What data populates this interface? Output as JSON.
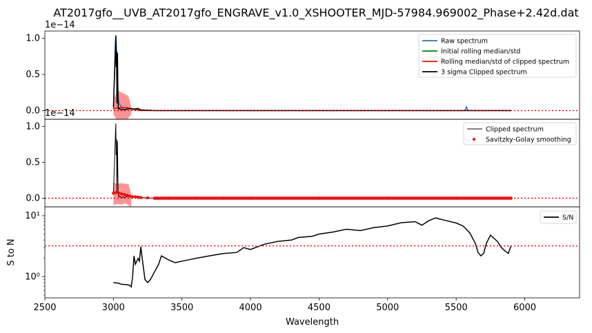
{
  "title": "AT2017gfo__UVB_AT2017gfo_ENGRAVE_v1.0_XSHOOTER_MJD-57984.969002_Phase+2.42d.dat",
  "colors": {
    "raw": "#1f77b4",
    "initial": "#008000",
    "rolling": "#ff0000",
    "band": "#ff8080",
    "clipped": "#000000"
  },
  "chart_data": [
    {
      "type": "line",
      "panel": "top",
      "xlim": [
        2500,
        6400
      ],
      "ylim": [
        -0.12,
        1.1
      ],
      "offset_text": "1e−14",
      "yticks": [
        0.0,
        0.5,
        1.0
      ],
      "ytick_labels": [
        "0.0",
        "0.5",
        "1.0"
      ],
      "grid": false,
      "legend_position": "top-right",
      "hline": {
        "y": 0.0,
        "style": "dotted",
        "color": "#ff0000"
      },
      "series": [
        {
          "name": "Raw spectrum",
          "color": "#1f77b4",
          "x": [
            3000,
            3010,
            3015,
            3020,
            3025,
            3030,
            3040,
            3060,
            3100,
            3150,
            3200,
            3300,
            4000,
            5000,
            5560,
            5570,
            5575,
            5580,
            5590,
            5900
          ],
          "y": [
            0.02,
            0.6,
            0.95,
            1.0,
            0.75,
            0.3,
            0.1,
            0.05,
            0.03,
            0.02,
            0.01,
            0.0,
            0.0,
            0.0,
            0.0,
            0.02,
            0.06,
            0.02,
            0.0,
            0.0
          ]
        },
        {
          "name": "Initial rolling median/std",
          "color": "#008000",
          "x": [],
          "y": []
        },
        {
          "name": "Rolling median/std of clipped spectrum",
          "color": "#ff0000",
          "x": [
            3000,
            3050,
            3100,
            3130,
            3200,
            5900
          ],
          "y": [
            0.03,
            0.04,
            0.04,
            0.02,
            0.0,
            0.0
          ],
          "band_x": [
            3000,
            3030,
            3060,
            3090,
            3110,
            3130
          ],
          "band_low": [
            -0.05,
            -0.15,
            -0.2,
            -0.18,
            -0.1,
            -0.05
          ],
          "band_high": [
            0.15,
            0.28,
            0.25,
            0.22,
            0.2,
            0.05
          ]
        },
        {
          "name": "3 sigma Clipped spectrum",
          "color": "#000000",
          "x": [
            3000,
            3005,
            3010,
            3015,
            3018,
            3020,
            3023,
            3026,
            3030,
            3032,
            3035,
            3040,
            3045,
            3050,
            3060,
            3070,
            3080,
            3100,
            3120,
            3150,
            3180,
            3200,
            3300,
            4000,
            5000,
            5900
          ],
          "y": [
            0.05,
            0.35,
            0.6,
            0.9,
            1.04,
            0.6,
            0.82,
            0.1,
            0.8,
            0.4,
            0.05,
            0.02,
            0.03,
            0.02,
            0.01,
            0.02,
            0.01,
            0.02,
            0.03,
            0.02,
            0.03,
            0.01,
            0.0,
            0.0,
            0.0,
            0.0
          ]
        }
      ]
    },
    {
      "type": "line",
      "panel": "middle",
      "xlim": [
        2500,
        6400
      ],
      "ylim": [
        -0.12,
        1.1
      ],
      "offset_text": "1e−14",
      "yticks": [
        0.0,
        0.5,
        1.0
      ],
      "ytick_labels": [
        "0.0",
        "0.5",
        "1.0"
      ],
      "grid": false,
      "legend_position": "top-right",
      "hline": {
        "y": 0.0,
        "style": "dotted",
        "color": "#ff0000"
      },
      "series": [
        {
          "name": "Clipped spectrum",
          "color": "#000000",
          "x": [
            3000,
            3005,
            3010,
            3015,
            3018,
            3020,
            3023,
            3026,
            3030,
            3032,
            3035,
            3040,
            3045,
            3050,
            3060,
            3070,
            3080,
            3100,
            3120,
            3150,
            3180,
            3200,
            3300,
            4000,
            5000,
            5900
          ],
          "y": [
            0.05,
            0.35,
            0.6,
            0.9,
            1.04,
            0.6,
            0.82,
            0.1,
            0.8,
            0.4,
            0.05,
            0.02,
            0.03,
            0.02,
            0.01,
            0.02,
            0.01,
            0.02,
            0.03,
            0.02,
            0.03,
            0.01,
            0.0,
            0.0,
            0.0,
            0.0
          ]
        },
        {
          "name": "Savitzky-Golay smoothing",
          "color": "#ff0000",
          "x": [
            3000,
            3020,
            3040,
            3060,
            3080,
            3100,
            3120,
            3140,
            3160,
            3180,
            3200,
            3250,
            3300,
            3400,
            3600,
            3800,
            4000,
            4500,
            5000,
            5500,
            5900
          ],
          "y": [
            0.07,
            0.08,
            0.07,
            0.06,
            0.05,
            0.04,
            0.03,
            0.02,
            0.02,
            0.01,
            0.01,
            0.005,
            0.0,
            0.0,
            0.0,
            0.0,
            0.0,
            0.0,
            0.0,
            0.0,
            0.0
          ],
          "band_x": [
            3000,
            3030,
            3060,
            3090,
            3110,
            3130
          ],
          "band_low": [
            -0.1,
            -0.08,
            -0.09,
            -0.07,
            -0.1,
            -0.12
          ],
          "band_high": [
            0.22,
            0.2,
            0.21,
            0.2,
            0.2,
            0.05
          ]
        }
      ]
    },
    {
      "type": "line",
      "panel": "bottom",
      "xlim": [
        2500,
        6400
      ],
      "ylog": true,
      "ylim": [
        0.45,
        14
      ],
      "offset_text": "",
      "ylabel": "S to N",
      "xlabel": "Wavelength",
      "yticks": [
        1,
        10
      ],
      "ytick_labels": [
        "10⁰",
        "10¹"
      ],
      "xticks": [
        2500,
        3000,
        3500,
        4000,
        4500,
        5000,
        5500,
        6000
      ],
      "xtick_labels": [
        "2500",
        "3000",
        "3500",
        "4000",
        "4500",
        "5000",
        "5500",
        "6000"
      ],
      "grid": false,
      "legend_position": "top-right",
      "hline": {
        "y": 3.2,
        "style": "dotted",
        "color": "#ff0000"
      },
      "series": [
        {
          "name": "S/N",
          "color": "#000000",
          "x": [
            3000,
            3040,
            3060,
            3100,
            3120,
            3130,
            3140,
            3150,
            3160,
            3180,
            3190,
            3200,
            3210,
            3230,
            3250,
            3270,
            3300,
            3330,
            3350,
            3400,
            3450,
            3500,
            3600,
            3700,
            3800,
            3900,
            3950,
            4000,
            4100,
            4200,
            4300,
            4350,
            4400,
            4450,
            4500,
            4600,
            4700,
            4800,
            4900,
            5000,
            5100,
            5200,
            5250,
            5300,
            5350,
            5400,
            5500,
            5550,
            5600,
            5640,
            5660,
            5680,
            5700,
            5720,
            5750,
            5800,
            5830,
            5860,
            5880,
            5900
          ],
          "y": [
            0.8,
            0.78,
            0.75,
            0.74,
            0.72,
            0.68,
            1.0,
            2.2,
            1.6,
            2.0,
            1.8,
            3.1,
            2.0,
            0.9,
            0.8,
            0.9,
            1.2,
            1.6,
            2.2,
            1.9,
            1.7,
            1.8,
            2.0,
            2.2,
            2.4,
            2.5,
            3.0,
            2.8,
            3.4,
            3.8,
            4.0,
            4.4,
            4.5,
            4.6,
            5.0,
            5.4,
            6.0,
            5.7,
            6.4,
            6.8,
            7.7,
            8.0,
            7.0,
            8.3,
            9.2,
            8.6,
            7.6,
            6.8,
            5.2,
            3.5,
            2.5,
            2.2,
            2.4,
            3.5,
            4.8,
            3.8,
            3.0,
            2.6,
            2.4,
            3.2
          ]
        }
      ]
    }
  ]
}
